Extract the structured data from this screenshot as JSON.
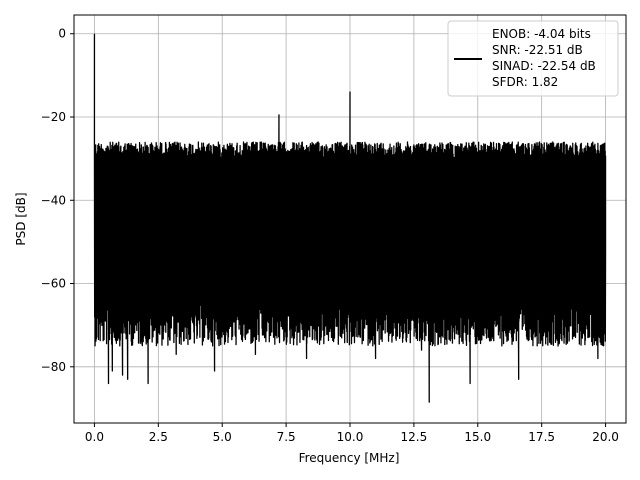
{
  "chart_data": {
    "type": "line",
    "title": "",
    "xlabel": "Frequency [MHz]",
    "ylabel": "PSD [dB]",
    "xlim": [
      -0.8,
      20.8
    ],
    "ylim": [
      -93.5,
      4.5
    ],
    "xticks": [
      0.0,
      2.5,
      5.0,
      7.5,
      10.0,
      12.5,
      15.0,
      17.5,
      20.0
    ],
    "xtick_labels": [
      "0.0",
      "2.5",
      "5.0",
      "7.5",
      "10.0",
      "12.5",
      "15.0",
      "17.5",
      "20.0"
    ],
    "yticks": [
      0,
      -20,
      -40,
      -60,
      -80
    ],
    "ytick_labels": [
      "0",
      "−20",
      "−40",
      "−60",
      "−80"
    ],
    "grid": true,
    "legend_position": "top-right",
    "series": [
      {
        "color": "#000000",
        "noise_floor_top_db": -26,
        "noise_floor_bottom_db": -69,
        "x": [
          0.0,
          0.02,
          0.04,
          0.3,
          0.55,
          0.7,
          1.1,
          1.3,
          2.1,
          3.2,
          4.7,
          6.3,
          7.22,
          7.26,
          8.3,
          10.0,
          10.04,
          11.0,
          12.8,
          13.1,
          14.7,
          16.6,
          19.7,
          20.0
        ],
        "y": [
          0.0,
          -30.0,
          -48.0,
          -50.0,
          -84.0,
          -81.0,
          -82.0,
          -83.0,
          -84.0,
          -77.0,
          -81.0,
          -77.0,
          -19.5,
          -33.0,
          -78.0,
          -14.0,
          -33.0,
          -78.0,
          -76.0,
          -88.5,
          -84.0,
          -83.0,
          -78.0,
          -52.0
        ]
      }
    ],
    "legend": {
      "line1": "ENOB: -4.04 bits",
      "line2": "SNR: -22.51 dB",
      "line3": "SINAD: -22.54 dB",
      "line4": "SFDR: 1.82"
    }
  }
}
